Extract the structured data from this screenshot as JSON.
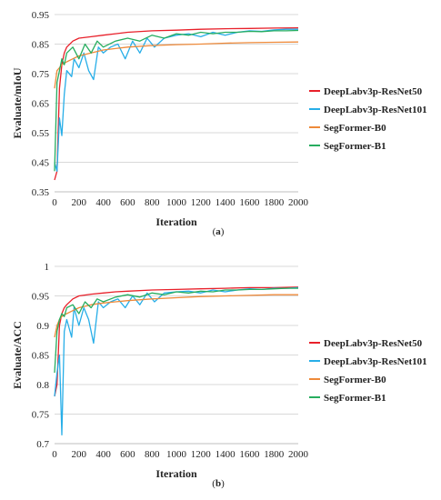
{
  "figure": {
    "caption_a": "(a)",
    "caption_a_letter": "a",
    "caption_b": "(b)",
    "caption_b_letter": "b"
  },
  "colors": {
    "DeepLabv3p-ResNet50": "#e8202a",
    "DeepLabv3p-ResNet101": "#27aee8",
    "SegFormer-B0": "#ee8a3a",
    "SegFormer-B1": "#27ad5f"
  },
  "chart_data": [
    {
      "type": "line",
      "ylabel": "Evaluate/mIoU",
      "xlabel": "Iteration",
      "xlim": [
        0,
        2000
      ],
      "ylim": [
        0.35,
        0.95
      ],
      "xticks": [
        0,
        200,
        400,
        600,
        800,
        1000,
        1200,
        1400,
        1600,
        1800,
        2000
      ],
      "yticks": [
        0.35,
        0.45,
        0.55,
        0.65,
        0.75,
        0.85,
        0.95
      ],
      "ytick_labels": [
        "0.35",
        "0.45",
        "0.55",
        "0.65",
        "0.75",
        "0.85",
        "0.95"
      ],
      "grid": "horizontal",
      "legend_position": "right",
      "series": [
        {
          "name": "DeepLabv3p-ResNet50",
          "x": [
            0,
            20,
            40,
            60,
            80,
            100,
            150,
            200,
            300,
            400,
            500,
            600,
            800,
            1000,
            1200,
            1400,
            1600,
            1800,
            2000
          ],
          "y": [
            0.39,
            0.42,
            0.7,
            0.78,
            0.82,
            0.84,
            0.86,
            0.87,
            0.875,
            0.88,
            0.885,
            0.89,
            0.895,
            0.897,
            0.9,
            0.902,
            0.903,
            0.904,
            0.905
          ]
        },
        {
          "name": "DeepLabv3p-ResNet101",
          "x": [
            0,
            20,
            40,
            60,
            80,
            100,
            140,
            160,
            200,
            240,
            280,
            320,
            360,
            400,
            460,
            520,
            580,
            640,
            700,
            760,
            820,
            900,
            1000,
            1100,
            1200,
            1300,
            1400,
            1500,
            1600,
            1700,
            1800,
            1900,
            2000
          ],
          "y": [
            0.45,
            0.42,
            0.6,
            0.54,
            0.68,
            0.76,
            0.74,
            0.8,
            0.77,
            0.82,
            0.76,
            0.73,
            0.84,
            0.82,
            0.84,
            0.85,
            0.8,
            0.86,
            0.82,
            0.87,
            0.84,
            0.87,
            0.88,
            0.885,
            0.875,
            0.89,
            0.88,
            0.89,
            0.895,
            0.893,
            0.898,
            0.9,
            0.9
          ]
        },
        {
          "name": "SegFormer-B0",
          "x": [
            0,
            20,
            40,
            60,
            80,
            100,
            150,
            200,
            300,
            400,
            500,
            600,
            800,
            1000,
            1200,
            1400,
            1600,
            1800,
            2000
          ],
          "y": [
            0.7,
            0.76,
            0.77,
            0.78,
            0.785,
            0.79,
            0.8,
            0.81,
            0.82,
            0.83,
            0.835,
            0.84,
            0.845,
            0.848,
            0.85,
            0.853,
            0.855,
            0.856,
            0.857
          ]
        },
        {
          "name": "SegFormer-B1",
          "x": [
            0,
            20,
            40,
            60,
            80,
            100,
            150,
            200,
            250,
            300,
            350,
            400,
            500,
            600,
            700,
            800,
            900,
            1000,
            1100,
            1200,
            1300,
            1400,
            1500,
            1600,
            1700,
            1800,
            1900,
            2000
          ],
          "y": [
            0.42,
            0.72,
            0.76,
            0.8,
            0.78,
            0.82,
            0.84,
            0.8,
            0.85,
            0.82,
            0.86,
            0.84,
            0.86,
            0.87,
            0.86,
            0.88,
            0.87,
            0.885,
            0.88,
            0.89,
            0.885,
            0.89,
            0.89,
            0.893,
            0.892,
            0.895,
            0.895,
            0.896
          ]
        }
      ]
    },
    {
      "type": "line",
      "ylabel": "Evaluate/ACC",
      "xlabel": "Iteration",
      "xlim": [
        0,
        2000
      ],
      "ylim": [
        0.7,
        1.0
      ],
      "xticks": [
        0,
        200,
        400,
        600,
        800,
        1000,
        1200,
        1400,
        1600,
        1800,
        2000
      ],
      "yticks": [
        0.7,
        0.75,
        0.8,
        0.85,
        0.9,
        0.95,
        1.0
      ],
      "ytick_labels": [
        "0.7",
        "0.75",
        "0.8",
        "0.85",
        "0.9",
        "0.95",
        "1"
      ],
      "grid": "horizontal",
      "legend_position": "right",
      "series": [
        {
          "name": "DeepLabv3p-ResNet50",
          "x": [
            0,
            20,
            40,
            60,
            80,
            100,
            150,
            200,
            300,
            400,
            500,
            600,
            800,
            1000,
            1200,
            1400,
            1600,
            1800,
            2000
          ],
          "y": [
            0.78,
            0.8,
            0.9,
            0.92,
            0.93,
            0.935,
            0.945,
            0.95,
            0.953,
            0.955,
            0.957,
            0.958,
            0.96,
            0.961,
            0.962,
            0.963,
            0.964,
            0.964,
            0.965
          ]
        },
        {
          "name": "DeepLabv3p-ResNet101",
          "x": [
            0,
            20,
            40,
            60,
            80,
            100,
            140,
            160,
            200,
            240,
            280,
            320,
            360,
            400,
            460,
            520,
            580,
            640,
            700,
            760,
            820,
            900,
            1000,
            1100,
            1200,
            1300,
            1400,
            1500,
            1600,
            1700,
            1800,
            1900,
            2000
          ],
          "y": [
            0.78,
            0.82,
            0.85,
            0.715,
            0.89,
            0.91,
            0.88,
            0.93,
            0.9,
            0.93,
            0.91,
            0.87,
            0.94,
            0.93,
            0.94,
            0.945,
            0.93,
            0.95,
            0.935,
            0.955,
            0.94,
            0.955,
            0.957,
            0.958,
            0.955,
            0.96,
            0.957,
            0.96,
            0.962,
            0.961,
            0.963,
            0.963,
            0.964
          ]
        },
        {
          "name": "SegFormer-B0",
          "x": [
            0,
            20,
            40,
            60,
            80,
            100,
            150,
            200,
            300,
            400,
            500,
            600,
            800,
            1000,
            1200,
            1400,
            1600,
            1800,
            2000
          ],
          "y": [
            0.88,
            0.9,
            0.91,
            0.915,
            0.918,
            0.92,
            0.925,
            0.93,
            0.935,
            0.938,
            0.94,
            0.942,
            0.945,
            0.947,
            0.949,
            0.95,
            0.951,
            0.952,
            0.952
          ]
        },
        {
          "name": "SegFormer-B1",
          "x": [
            0,
            20,
            40,
            60,
            80,
            100,
            150,
            200,
            250,
            300,
            350,
            400,
            500,
            600,
            700,
            800,
            900,
            1000,
            1100,
            1200,
            1300,
            1400,
            1500,
            1600,
            1700,
            1800,
            1900,
            2000
          ],
          "y": [
            0.82,
            0.89,
            0.91,
            0.92,
            0.915,
            0.93,
            0.935,
            0.92,
            0.94,
            0.93,
            0.945,
            0.94,
            0.948,
            0.952,
            0.948,
            0.955,
            0.952,
            0.957,
            0.955,
            0.958,
            0.957,
            0.96,
            0.96,
            0.961,
            0.961,
            0.962,
            0.963,
            0.963
          ]
        }
      ]
    }
  ]
}
